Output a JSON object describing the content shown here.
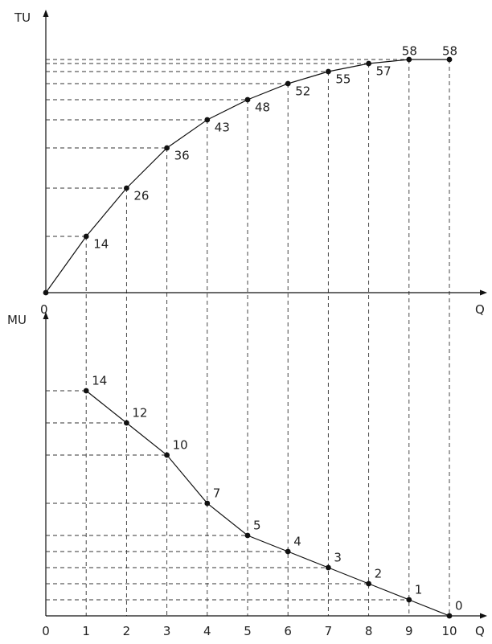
{
  "chart_data": [
    {
      "type": "line",
      "xlabel": "Q",
      "ylabel": "TU",
      "origin_label": "0",
      "x": [
        0,
        1,
        2,
        3,
        4,
        5,
        6,
        7,
        8,
        9,
        10
      ],
      "series": [
        {
          "values": [
            0,
            14,
            26,
            36,
            43,
            48,
            52,
            55,
            57,
            58,
            58
          ]
        }
      ],
      "point_labels": [
        "14",
        "26",
        "36",
        "43",
        "48",
        "52",
        "55",
        "57",
        "58",
        "58"
      ],
      "grid": false,
      "guides": "dashed"
    },
    {
      "type": "line",
      "xlabel": "Q",
      "ylabel": "MU",
      "x": [
        1,
        2,
        3,
        4,
        5,
        6,
        7,
        8,
        9,
        10
      ],
      "tick_labels": [
        "0",
        "1",
        "2",
        "3",
        "4",
        "5",
        "6",
        "7",
        "8",
        "9",
        "10"
      ],
      "series": [
        {
          "values": [
            14,
            12,
            10,
            7,
            5,
            4,
            3,
            2,
            1,
            0
          ]
        }
      ],
      "point_labels": [
        "14",
        "12",
        "10",
        "7",
        "5",
        "4",
        "3",
        "2",
        "1",
        "0"
      ],
      "grid": false,
      "guides": "dashed"
    }
  ]
}
